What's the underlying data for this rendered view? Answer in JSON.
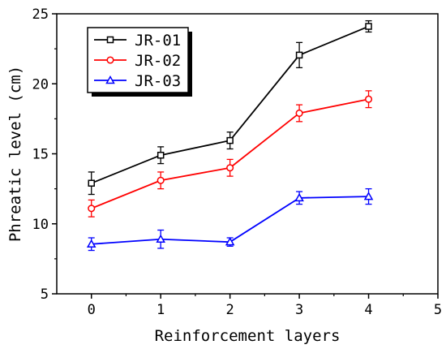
{
  "chart_data": {
    "type": "line",
    "xlabel": "Reinforcement layers",
    "ylabel": "Phreatic level (cm)",
    "xlim": [
      -0.5,
      5
    ],
    "ylim": [
      5,
      25
    ],
    "xticks": [
      0,
      1,
      2,
      3,
      4,
      5
    ],
    "yticks": [
      5,
      10,
      15,
      20,
      25
    ],
    "grid": false,
    "legend_position": "top-left",
    "x": [
      0,
      1,
      2,
      3,
      4
    ],
    "series": [
      {
        "name": "JR-01",
        "color": "#000000",
        "marker": "square",
        "values": [
          12.9,
          14.9,
          15.95,
          22.05,
          24.1
        ],
        "errors": [
          0.8,
          0.6,
          0.6,
          0.9,
          0.4
        ]
      },
      {
        "name": "JR-02",
        "color": "#ff0000",
        "marker": "circle",
        "values": [
          11.1,
          13.1,
          14.0,
          17.9,
          18.9
        ],
        "errors": [
          0.6,
          0.6,
          0.6,
          0.6,
          0.6
        ]
      },
      {
        "name": "JR-03",
        "color": "#0000ff",
        "marker": "triangle",
        "values": [
          8.55,
          8.9,
          8.7,
          11.85,
          11.95
        ],
        "errors": [
          0.45,
          0.65,
          0.3,
          0.45,
          0.55
        ]
      }
    ]
  }
}
